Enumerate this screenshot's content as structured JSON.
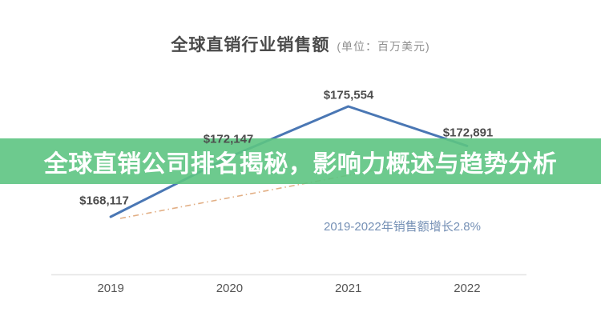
{
  "header": {
    "title": "全球直销行业销售额",
    "unit": "(单位：百万美元)"
  },
  "banner": {
    "text": "全球直销公司排名揭秘，影响力概述与趋势分析",
    "background": "#5dc482",
    "text_color": "#ffffff"
  },
  "chart_data": {
    "type": "line",
    "title": "全球直销行业销售额 (单位：百万美元)",
    "categories": [
      "2019",
      "2020",
      "2021",
      "2022"
    ],
    "series": [
      {
        "name": "全球直销行业销售额",
        "values": [
          168117,
          172147,
          175554,
          172891
        ]
      }
    ],
    "data_labels": [
      "$168,117",
      "$172,147",
      "$175,554",
      "$172,891"
    ],
    "annotation": "2019-2022年销售额增长2.8%",
    "trendline": {
      "style": "dash-dot",
      "from": 168117,
      "to": 172891
    },
    "line_color": "#4a77b4",
    "trend_color": "#dfa678",
    "annotation_color": "#7590b5",
    "axis_line_color": "#e4e4e4",
    "grid": false,
    "legend_position": "below-right",
    "ylim": [
      166000,
      178000
    ],
    "xlabel": "",
    "ylabel": ""
  }
}
